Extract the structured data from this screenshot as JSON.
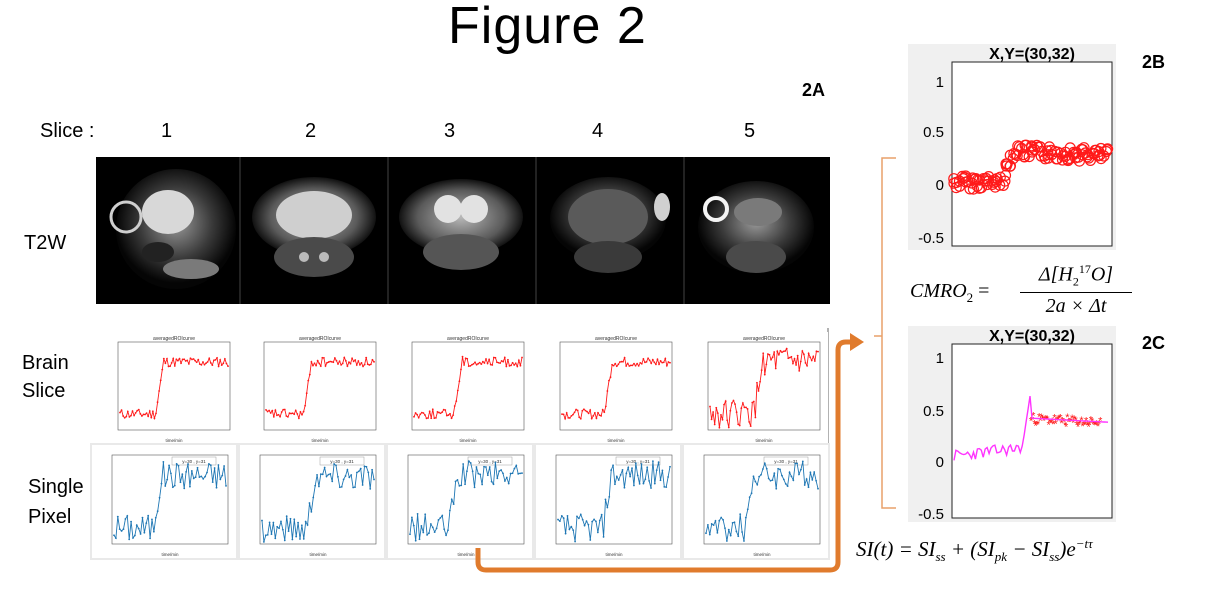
{
  "figure_title": "Figure 2",
  "panel_labels": {
    "a": "2A",
    "b": "2B",
    "c": "2C"
  },
  "slice_label": "Slice :",
  "slice_numbers": [
    "1",
    "2",
    "3",
    "4",
    "5"
  ],
  "row_labels": {
    "t2w": "T2W",
    "brain_line1": "Brain",
    "brain_line2": "Slice",
    "pixel_line1": "Single",
    "pixel_line2": "Pixel"
  },
  "panel_b": {
    "title": "X,Y=(30,32)",
    "yticks": [
      "1",
      "0.5",
      "0",
      "-0.5"
    ]
  },
  "panel_c": {
    "title": "X,Y=(30,32)",
    "yticks": [
      "1",
      "0.5",
      "0",
      "-0.5"
    ]
  },
  "equations": {
    "cmro2_lhs": "CMRO",
    "cmro2_sub": "2",
    "cmro2_eq": "=",
    "cmro2_num_a": "Δ[H",
    "cmro2_num_sub": "2",
    "cmro2_num_sup": "17",
    "cmro2_num_b": "O]",
    "cmro2_den": "2a × Δt",
    "si_lhs": "SI(t) = SI",
    "si_ss1": "ss",
    "si_mid": " + (SI",
    "si_pk": "pk",
    "si_minus": " − SI",
    "si_ss2": "ss",
    "si_close": ")e",
    "si_exp": "−tτ"
  },
  "colors": {
    "red_curve": "#ff1a1a",
    "blue_curve": "#1f77b4",
    "magenta_curve": "#ff33ff",
    "arrow_orange": "#e07b2d",
    "bracket_orange": "#e8a06a"
  },
  "mini_plot_text": {
    "avg_title": "averagedROIcurve",
    "time_label": "time/min",
    "legend": "y=30 , y=31"
  }
}
